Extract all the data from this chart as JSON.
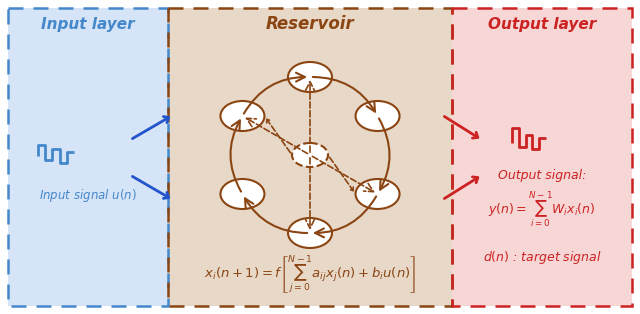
{
  "input_bg": "#d6e4f7",
  "reservoir_bg": "#e8d8c8",
  "output_bg": "#f7d6d6",
  "input_border": "#4488cc",
  "reservoir_border": "#8B4513",
  "output_border": "#cc2222",
  "node_color": "white",
  "node_edge": "#8B4513",
  "arrow_color_blue": "#2255cc",
  "arrow_color_red": "#cc2222",
  "arrow_color_brown": "#8B4513",
  "title_input": "Input layer",
  "title_reservoir": "Reservoir",
  "title_output": "Output layer",
  "input_signal_label": "Input signal $u(n)$",
  "output_signal_label": "Output signal:",
  "formula_reservoir": "$x_i(n+1) = f\\left[\\sum_{j=0}^{N-1} a_{ij}x_j(n) + b_i u(n)\\right]$",
  "formula_output": "$y(n) = \\sum_{i=0}^{N-1} W_i x_i(n)$",
  "formula_target": "$d(n)$ : target signal"
}
